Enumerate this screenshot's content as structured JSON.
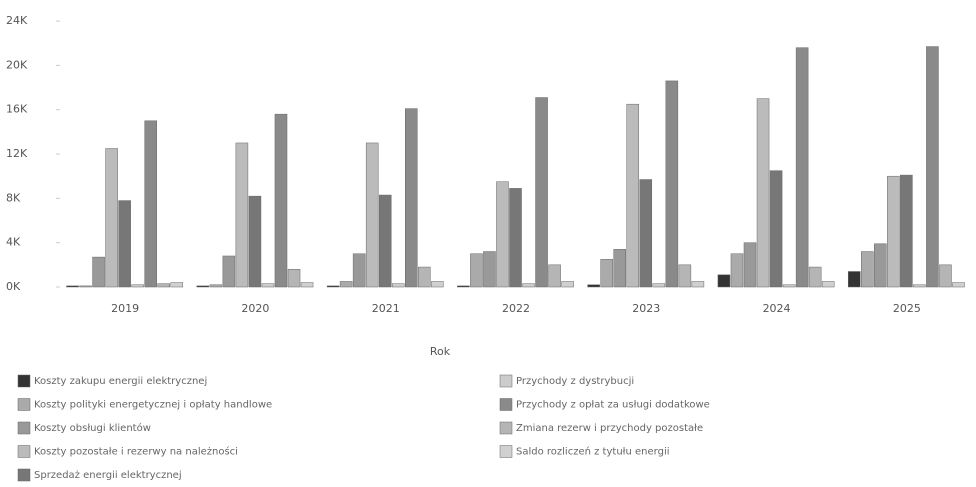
{
  "chart_data": {
    "type": "bar",
    "x_label": "Rok",
    "categories": [
      "2019",
      "2020",
      "2021",
      "2022",
      "2023",
      "2024",
      "2025"
    ],
    "ylim": [
      0,
      25
    ],
    "yticks": [
      {
        "value": 0,
        "label": "0K"
      },
      {
        "value": 4,
        "label": "4K"
      },
      {
        "value": 8,
        "label": "8K"
      },
      {
        "value": 12,
        "label": "12K"
      },
      {
        "value": 16,
        "label": "16K"
      },
      {
        "value": 20,
        "label": "20K"
      },
      {
        "value": 24,
        "label": "24K"
      }
    ],
    "series": [
      {
        "name": "Koszty zakupu energii elektrycznej",
        "color": "#333333",
        "values": [
          0.1,
          0.1,
          0.1,
          0.1,
          0.2,
          1.1,
          1.4
        ]
      },
      {
        "name": "Koszty polityki energetycznej i opłaty handlowe",
        "color": "#aaaaaa",
        "values": [
          0.1,
          0.2,
          0.5,
          3.0,
          2.5,
          3.0,
          3.2
        ]
      },
      {
        "name": "Koszty obsługi klientów",
        "color": "#999999",
        "values": [
          2.7,
          2.8,
          3.0,
          3.2,
          3.4,
          4.0,
          3.9
        ]
      },
      {
        "name": "Koszty pozostałe i rezerwy na należności",
        "color": "#bbbbbb",
        "values": [
          12.5,
          13.0,
          13.0,
          9.5,
          16.5,
          17.0,
          10.0
        ]
      },
      {
        "name": "Sprzedaż energii elektrycznej",
        "color": "#777777",
        "values": [
          7.8,
          8.2,
          8.3,
          8.9,
          9.7,
          10.5,
          10.1
        ]
      },
      {
        "name": "Przychody z dystrybucji",
        "color": "#cccccc",
        "values": [
          0.2,
          0.3,
          0.3,
          0.3,
          0.3,
          0.2,
          0.2
        ]
      },
      {
        "name": "Przychody z opłat za usługi dodatkowe",
        "color": "#8a8a8a",
        "values": [
          15.0,
          15.6,
          16.1,
          17.1,
          18.6,
          21.6,
          21.7
        ]
      },
      {
        "name": "Zmiana rezerw i przychody pozostałe",
        "color": "#b5b5b5",
        "values": [
          0.3,
          1.6,
          1.8,
          2.0,
          2.0,
          1.8,
          2.0
        ]
      },
      {
        "name": "Saldo rozliczeń z tytułu energii",
        "color": "#d0d0d0",
        "values": [
          0.4,
          0.4,
          0.5,
          0.5,
          0.5,
          0.5,
          0.4
        ]
      }
    ]
  }
}
